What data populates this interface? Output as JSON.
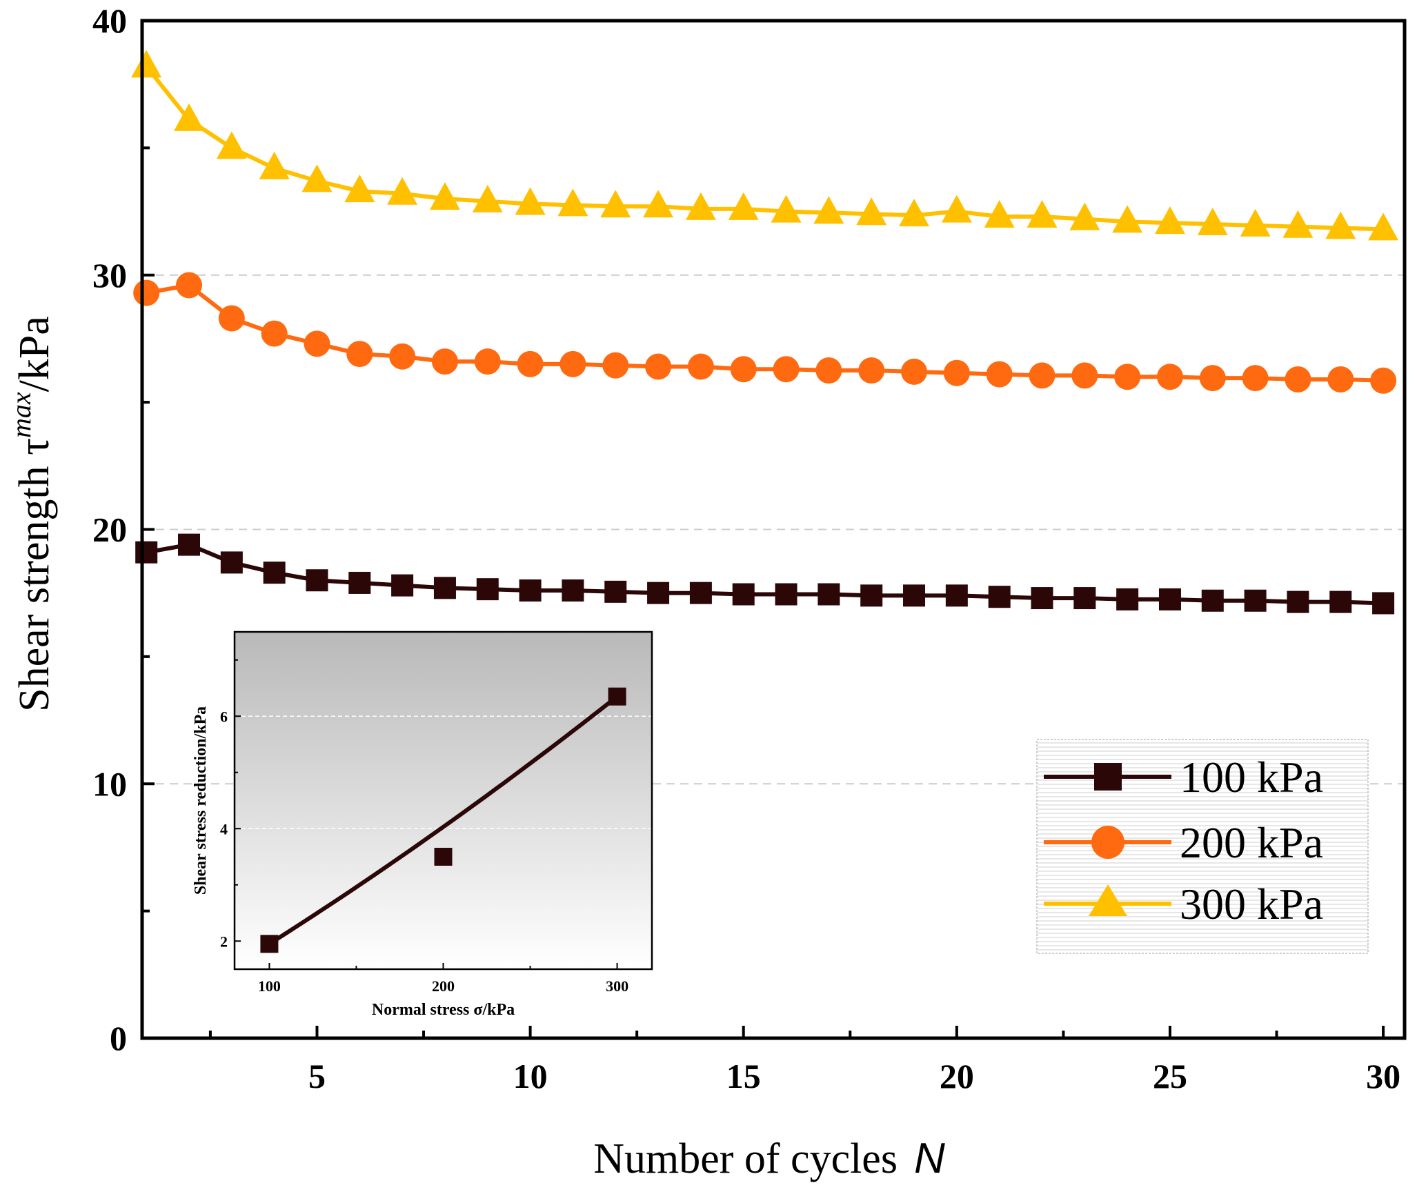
{
  "chart_data": [
    {
      "type": "line",
      "xlabel": "Number of cycles",
      "xlabel_var": "N",
      "ylabel": "Shear strength τ",
      "ylabel_sup": "max",
      "ylabel_unit": "/kPa",
      "xlim": [
        0.9,
        30.5
      ],
      "ylim": [
        0,
        40
      ],
      "xticks": [
        5,
        10,
        15,
        20,
        25,
        30
      ],
      "yticks": [
        0,
        10,
        20,
        30,
        40
      ],
      "grid": "horizontal dashed",
      "legend_position": "bottom-right",
      "x": [
        1,
        2,
        3,
        4,
        5,
        6,
        7,
        8,
        9,
        10,
        11,
        12,
        13,
        14,
        15,
        16,
        17,
        18,
        19,
        20,
        21,
        22,
        23,
        24,
        25,
        26,
        27,
        28,
        29,
        30
      ],
      "series": [
        {
          "name": "100 kPa",
          "marker": "square",
          "color": "#2b0707",
          "values": [
            19.1,
            19.4,
            18.7,
            18.3,
            18.0,
            17.9,
            17.8,
            17.7,
            17.65,
            17.6,
            17.6,
            17.55,
            17.5,
            17.5,
            17.45,
            17.45,
            17.45,
            17.4,
            17.4,
            17.4,
            17.35,
            17.3,
            17.3,
            17.25,
            17.25,
            17.2,
            17.2,
            17.15,
            17.15,
            17.1
          ]
        },
        {
          "name": "200 kPa",
          "marker": "circle",
          "color": "#ff6a10",
          "values": [
            29.3,
            29.6,
            28.3,
            27.7,
            27.3,
            26.9,
            26.8,
            26.6,
            26.6,
            26.5,
            26.5,
            26.45,
            26.4,
            26.4,
            26.3,
            26.3,
            26.25,
            26.25,
            26.2,
            26.15,
            26.1,
            26.05,
            26.05,
            26.0,
            26.0,
            25.95,
            25.95,
            25.9,
            25.9,
            25.85
          ]
        },
        {
          "name": "300 kPa",
          "marker": "triangle",
          "color": "#ffc000",
          "values": [
            38.2,
            36.1,
            35.0,
            34.2,
            33.7,
            33.3,
            33.2,
            33.0,
            32.9,
            32.8,
            32.75,
            32.7,
            32.7,
            32.6,
            32.6,
            32.5,
            32.45,
            32.4,
            32.35,
            32.5,
            32.3,
            32.3,
            32.2,
            32.1,
            32.05,
            32.0,
            31.95,
            31.9,
            31.85,
            31.8
          ]
        }
      ]
    },
    {
      "type": "line",
      "role": "inset",
      "xlabel": "Normal stress σ/kPa",
      "ylabel": "Shear stress reduction/kPa",
      "xlim": [
        80,
        320
      ],
      "ylim": [
        1.5,
        7.5
      ],
      "xticks": [
        100,
        200,
        300
      ],
      "yticks": [
        2,
        4,
        6
      ],
      "grid": "horizontal dashed",
      "background": "gradient grey to white",
      "points": {
        "x": [
          100,
          200,
          300
        ],
        "y": [
          1.95,
          3.5,
          6.35
        ]
      },
      "fit_curve": {
        "x0": 100,
        "y0": 1.95,
        "x1": 300,
        "y1": 6.35,
        "shape": "slightly convex upward"
      }
    }
  ]
}
